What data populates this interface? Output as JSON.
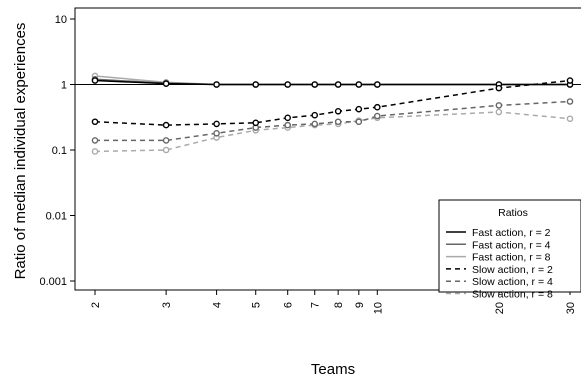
{
  "chart_data": {
    "type": "line",
    "title": "",
    "xlabel": "Teams",
    "ylabel": "Ratio of median individual experiences",
    "x_scale": "log",
    "y_scale": "log",
    "x": [
      2,
      3,
      4,
      5,
      6,
      7,
      8,
      9,
      10,
      20,
      30
    ],
    "x_tick_labels": [
      "2",
      "3",
      "4",
      "5",
      "6",
      "7",
      "8",
      "9",
      "10",
      "20",
      "30"
    ],
    "y_ticks": [
      0.001,
      0.01,
      0.1,
      1,
      10
    ],
    "y_tick_labels": [
      "0.001",
      "0.01",
      "0.1",
      "1",
      "10"
    ],
    "ylim": [
      0.001,
      10
    ],
    "legend": {
      "title": "Ratios",
      "placement": "bottom-right"
    },
    "series": [
      {
        "name": "Fast action, r = 2",
        "color": "#000000",
        "dash": "solid",
        "values": [
          1.15,
          1.03,
          1.0,
          1.0,
          1.0,
          1.0,
          1.0,
          1.0,
          1.0,
          1.0,
          1.0
        ]
      },
      {
        "name": "Fast action, r = 4",
        "color": "#666666",
        "dash": "solid",
        "values": [
          1.2,
          1.05,
          1.0,
          1.0,
          1.0,
          1.0,
          1.0,
          1.0,
          1.0,
          1.0,
          1.0
        ]
      },
      {
        "name": "Fast action, r = 8",
        "color": "#aaaaaa",
        "dash": "solid",
        "values": [
          1.35,
          1.08,
          1.0,
          1.0,
          1.0,
          1.0,
          1.0,
          1.0,
          1.0,
          1.0,
          1.0
        ]
      },
      {
        "name": "Slow action, r = 2",
        "color": "#000000",
        "dash": "dashed",
        "values": [
          0.27,
          0.24,
          0.25,
          0.26,
          0.31,
          0.34,
          0.39,
          0.42,
          0.45,
          0.88,
          1.15
        ]
      },
      {
        "name": "Slow action, r = 4",
        "color": "#666666",
        "dash": "dashed",
        "values": [
          0.14,
          0.14,
          0.18,
          0.22,
          0.24,
          0.25,
          0.27,
          0.27,
          0.33,
          0.48,
          0.55
        ]
      },
      {
        "name": "Slow action, r = 8",
        "color": "#aaaaaa",
        "dash": "dashed",
        "values": [
          0.095,
          0.1,
          0.155,
          0.2,
          0.22,
          0.24,
          0.25,
          0.28,
          0.31,
          0.38,
          0.3
        ]
      }
    ]
  }
}
